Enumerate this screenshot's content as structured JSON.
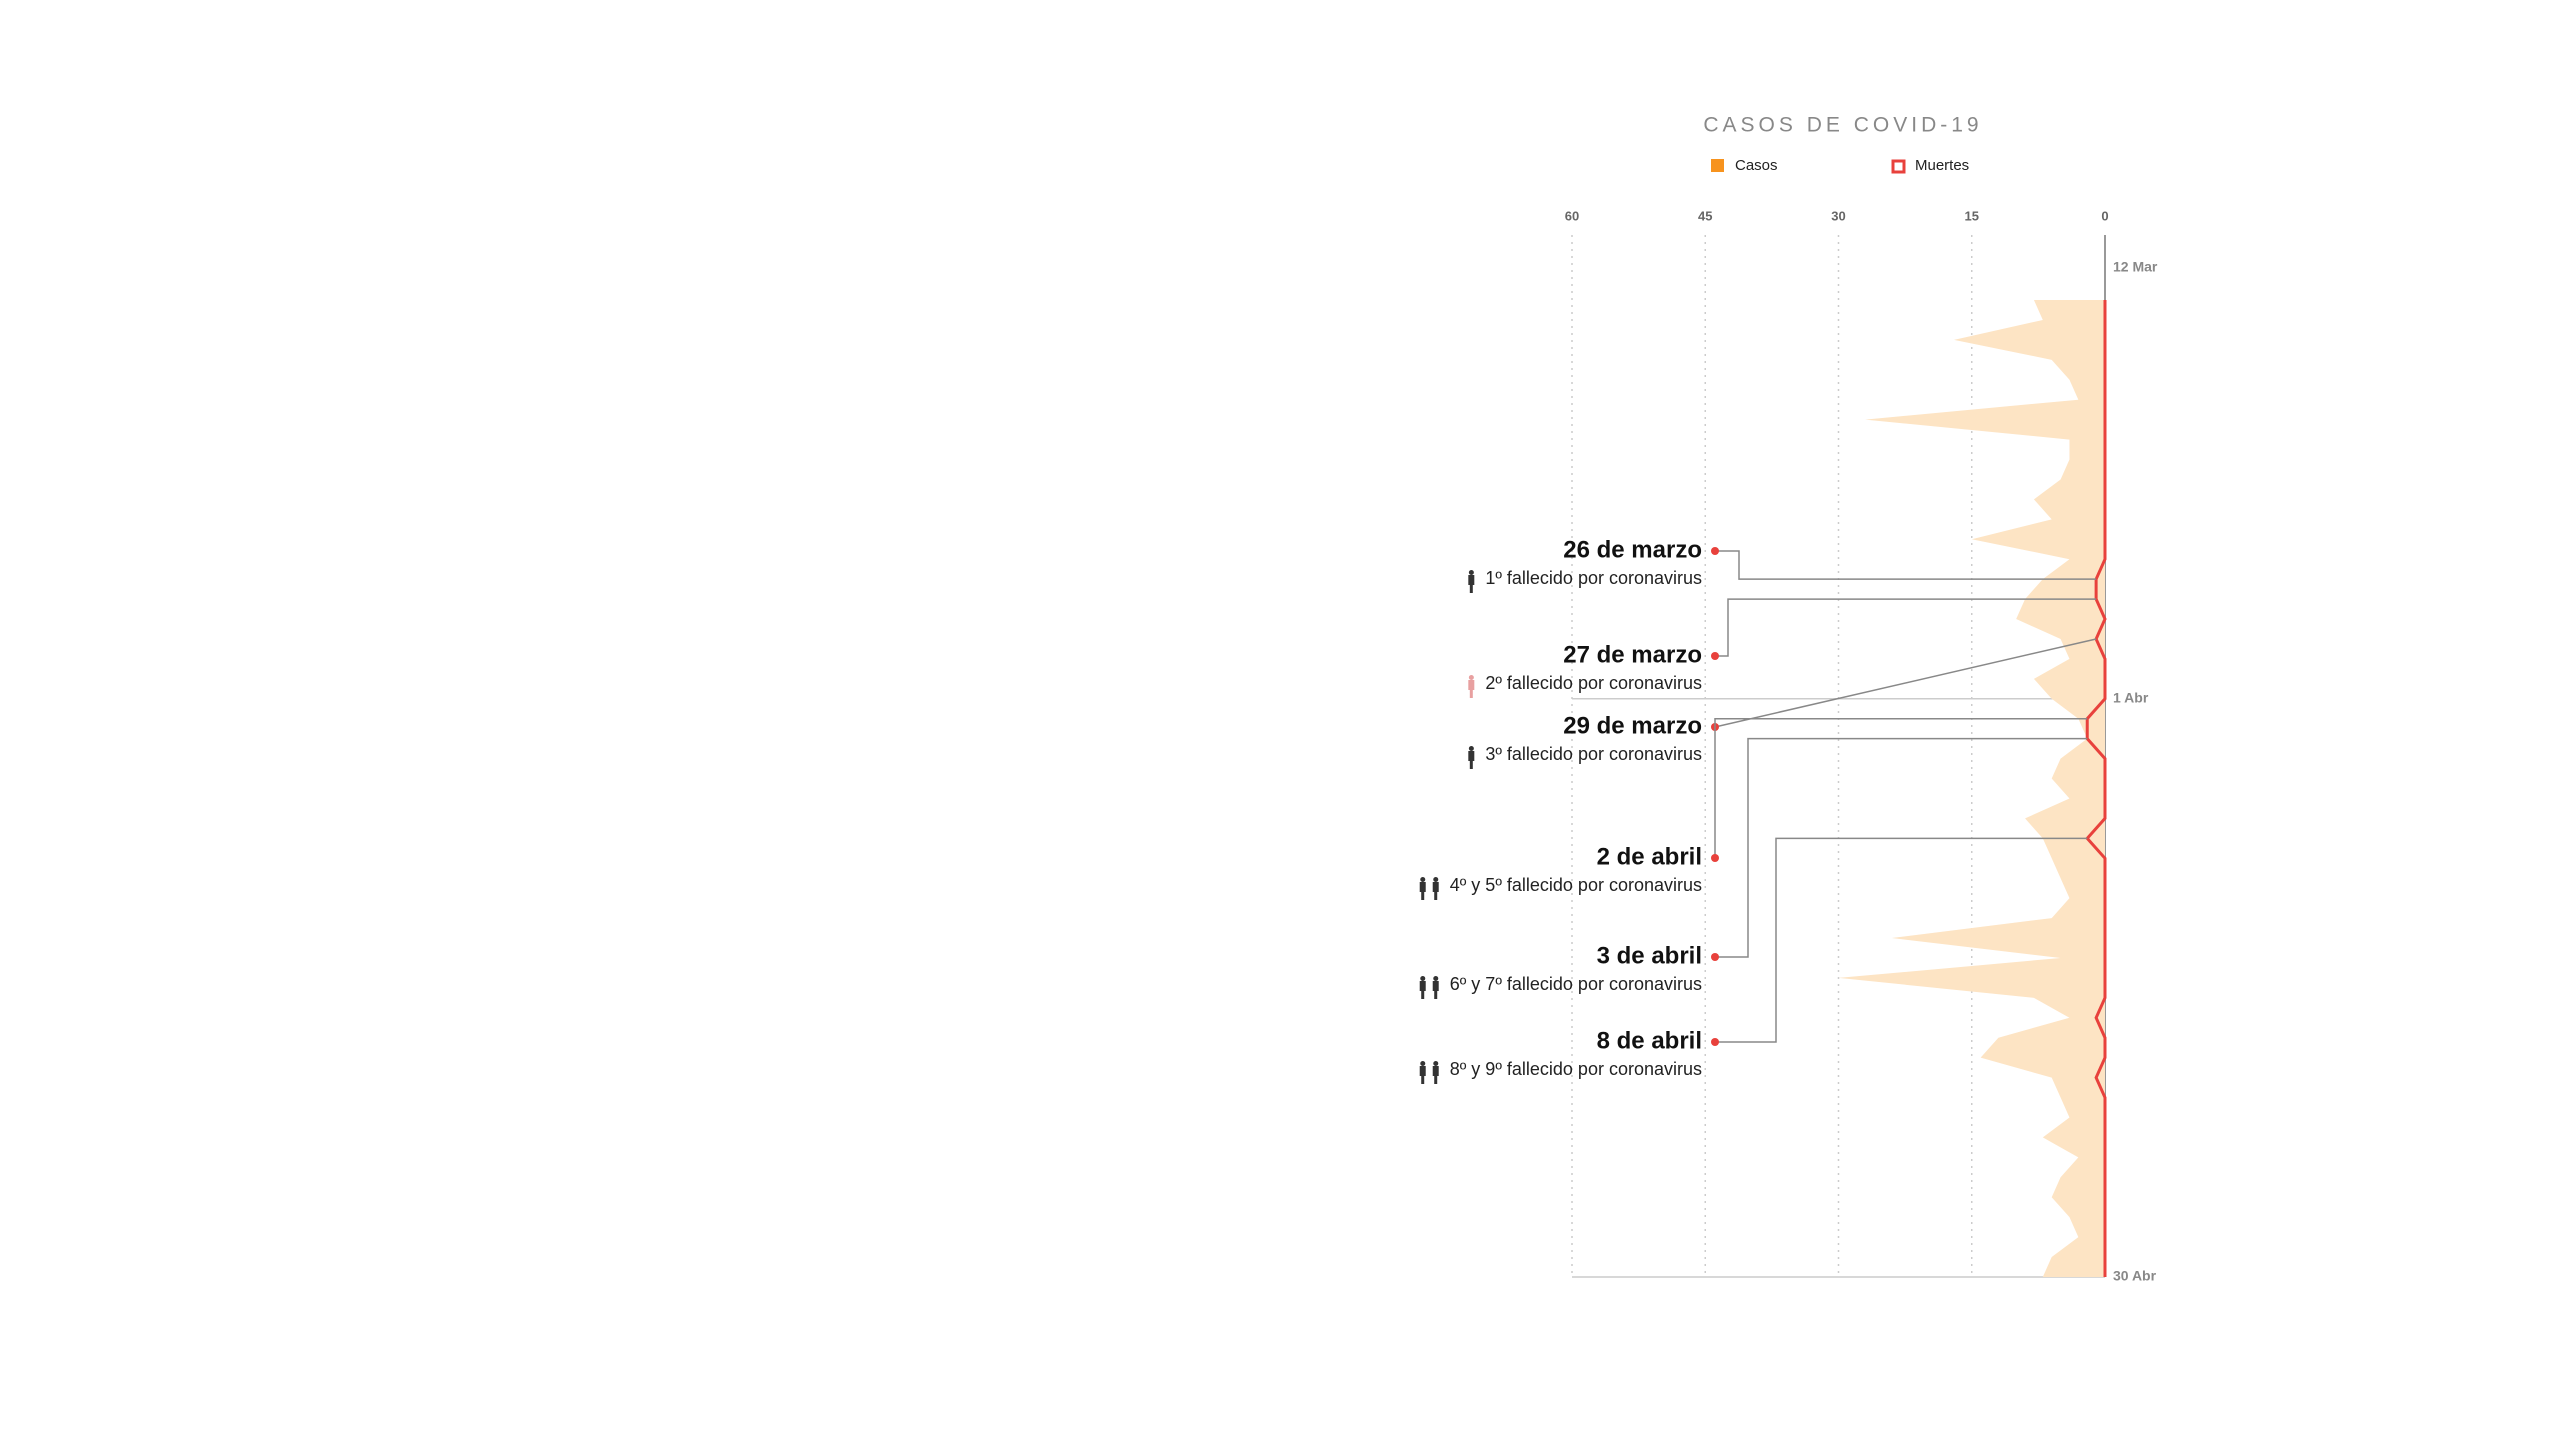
{
  "chart_data": {
    "type": "area",
    "title": "CASOS DE COVID-19",
    "categories": [
      "12 Mar",
      null,
      null,
      null,
      null,
      null,
      null,
      null,
      null,
      null,
      null,
      null,
      null,
      null,
      null,
      null,
      null,
      null,
      null,
      null,
      "1 Abr",
      null,
      null,
      null,
      null,
      null,
      null,
      null,
      null,
      null,
      null,
      null,
      null,
      null,
      null,
      null,
      null,
      null,
      null,
      null,
      null,
      null,
      null,
      null,
      null,
      null,
      null,
      null,
      null,
      "30 Abr"
    ],
    "series": [
      {
        "name": "Casos",
        "color": "#fde4c4",
        "legend_color": "#f7931e",
        "values": [
          8,
          7,
          17,
          6,
          4,
          3,
          27,
          4,
          4,
          5,
          8,
          6,
          15,
          4,
          7,
          9,
          10,
          5,
          4,
          8,
          6,
          3,
          2,
          5,
          6,
          4,
          9,
          7,
          6,
          5,
          4,
          6,
          24,
          5,
          30,
          8,
          4,
          12,
          14,
          6,
          5,
          4,
          7,
          3,
          5,
          6,
          4,
          3,
          6,
          7
        ]
      },
      {
        "name": "Muertes",
        "color": "#e8413c",
        "values": [
          0,
          0,
          0,
          0,
          0,
          0,
          0,
          0,
          0,
          0,
          0,
          0,
          0,
          0,
          1,
          1,
          0,
          1,
          0,
          0,
          0,
          2,
          2,
          0,
          0,
          0,
          0,
          2,
          0,
          0,
          0,
          0,
          0,
          0,
          0,
          0,
          1,
          0,
          0,
          1,
          0,
          0,
          0,
          0,
          0,
          0,
          0,
          0,
          0,
          0
        ]
      }
    ],
    "xlim": [
      60,
      0
    ],
    "xticks": [
      60,
      45,
      30,
      15,
      0
    ],
    "grid": true,
    "annotations": [
      {
        "date": "26 de marzo",
        "text": "1º fallecido por coronavirus"
      },
      {
        "date": "27 de marzo",
        "text": "2º fallecido por coronavirus"
      },
      {
        "date": "29 de marzo",
        "text": "3º fallecido por coronavirus"
      },
      {
        "date": "2 de abril",
        "text": "4º y 5º fallecido por coronavirus"
      },
      {
        "date": "3 de abril",
        "text": "6º y 7º fallecido por coronavirus"
      },
      {
        "date": "8 de abril",
        "text": "8º y 9º fallecido por coronavirus"
      }
    ]
  }
}
